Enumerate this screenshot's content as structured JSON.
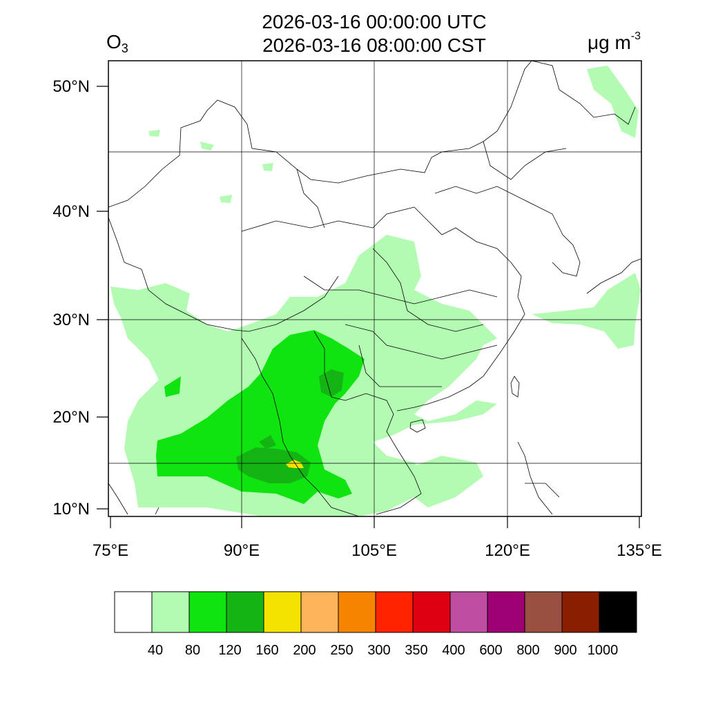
{
  "title": {
    "utc": "2026-03-16 00:00:00 UTC",
    "cst": "2026-03-16 08:00:00 CST"
  },
  "variable": {
    "symbol": "O",
    "subscript": "3"
  },
  "unit": {
    "base": "μg m",
    "exponent": "-3"
  },
  "map": {
    "lat_labels": [
      "50°N",
      "40°N",
      "30°N",
      "20°N",
      "10°N"
    ],
    "lon_labels": [
      "75°E",
      "90°E",
      "105°E",
      "120°E",
      "135°E"
    ],
    "lon_range": [
      75,
      135
    ],
    "lat_range": [
      9,
      52
    ]
  },
  "colorbar": {
    "colors": [
      "#ffffff",
      "#b3fbb3",
      "#10e410",
      "#14b414",
      "#f4e200",
      "#feb45a",
      "#f68400",
      "#fe2400",
      "#de0012",
      "#bd4ea0",
      "#9e0073",
      "#9a5040",
      "#8a1e00",
      "#000000"
    ],
    "labels": [
      "40",
      "80",
      "120",
      "160",
      "200",
      "250",
      "300",
      "350",
      "400",
      "600",
      "800",
      "900",
      "1000"
    ]
  }
}
